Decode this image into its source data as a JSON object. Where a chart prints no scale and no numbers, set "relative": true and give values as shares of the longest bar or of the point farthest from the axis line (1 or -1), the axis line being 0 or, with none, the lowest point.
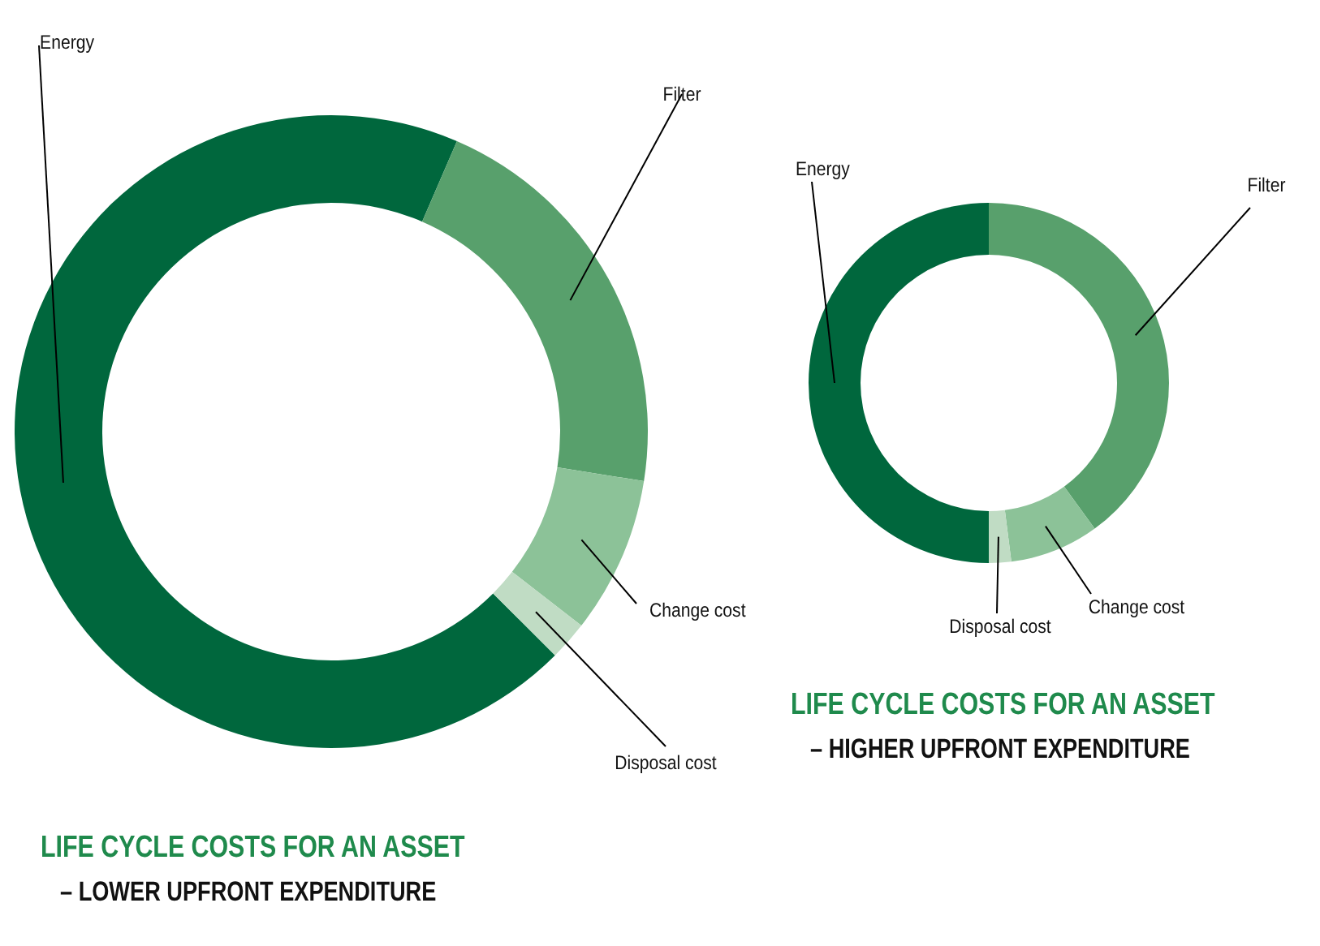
{
  "chart_data": [
    {
      "type": "donut",
      "relative": true,
      "title": "LIFE CYCLE COSTS FOR AN ASSET",
      "subtitle": "– LOWER UPFRONT EXPENDITURE",
      "categories": [
        "Energy",
        "Filter",
        "Change cost",
        "Disposal cost"
      ],
      "values": [
        69,
        21,
        8,
        2
      ],
      "colors": [
        "#00673d",
        "#58a06c",
        "#8cc298",
        "#c0dcc4"
      ]
    },
    {
      "type": "donut",
      "relative": true,
      "title": "LIFE CYCLE COSTS FOR AN ASSET",
      "subtitle": "– HIGHER UPFRONT EXPENDITURE",
      "categories": [
        "Energy",
        "Filter",
        "Change cost",
        "Disposal cost"
      ],
      "values": [
        50,
        40,
        8,
        2
      ],
      "colors": [
        "#00673d",
        "#58a06c",
        "#8cc298",
        "#c0dcc4"
      ]
    }
  ]
}
